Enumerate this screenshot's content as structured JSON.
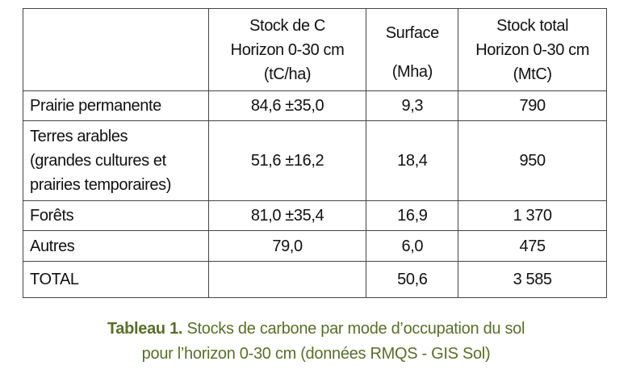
{
  "table": {
    "header": [
      [
        "Stock de C",
        "Horizon 0-30 cm",
        "(tC/ha)"
      ],
      [
        "Surface",
        "(Mha)"
      ],
      [
        "Stock total",
        "Horizon 0-30 cm",
        "(MtC)"
      ]
    ],
    "rows": [
      {
        "label": [
          "Prairie permanente"
        ],
        "stock": "84,6 ±35,0",
        "surface": "9,3",
        "total": "790"
      },
      {
        "label": [
          "Terres arables",
          "(grandes cultures et",
          "prairies temporaires)"
        ],
        "stock": "51,6 ±16,2",
        "surface": "18,4",
        "total": "950"
      },
      {
        "label": [
          "Forêts"
        ],
        "stock": "81,0 ±35,4",
        "surface": "16,9",
        "total": "1 370"
      },
      {
        "label": [
          "Autres"
        ],
        "stock": "79,0",
        "surface": "6,0",
        "total": "475"
      },
      {
        "label": [
          "TOTAL"
        ],
        "surface": "50,6",
        "total": "3 585"
      }
    ]
  },
  "caption": {
    "label": "Tableau 1.",
    "lines": [
      "Stocks de carbone par mode d’occupation du sol",
      "pour l’horizon 0-30 cm (données RMQS - GIS Sol)"
    ]
  }
}
